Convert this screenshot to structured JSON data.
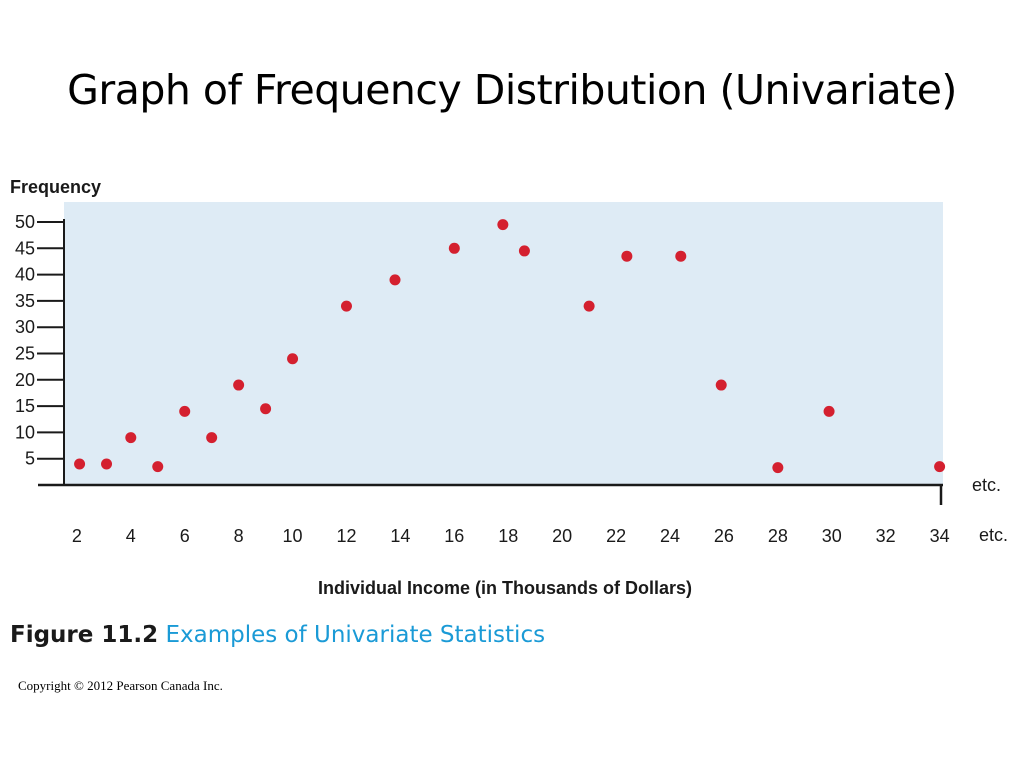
{
  "page_title": "Graph of Frequency Distribution (Univariate)",
  "chart_data": {
    "type": "scatter",
    "ylabel": "Frequency",
    "xlabel": "Individual Income (in Thousands of Dollars)",
    "x_ticks": [
      2,
      4,
      6,
      8,
      10,
      12,
      14,
      16,
      18,
      20,
      22,
      24,
      26,
      28,
      30,
      32,
      34
    ],
    "y_ticks": [
      5,
      10,
      15,
      20,
      25,
      30,
      35,
      40,
      45,
      50
    ],
    "xlim": [
      1.3,
      34.2
    ],
    "ylim": [
      0,
      53
    ],
    "x_etc_label": "etc.",
    "axis_etc_label": "etc.",
    "points": [
      {
        "x": 2.1,
        "y": 4
      },
      {
        "x": 3.1,
        "y": 4
      },
      {
        "x": 4.0,
        "y": 9
      },
      {
        "x": 5.0,
        "y": 3.5
      },
      {
        "x": 6.0,
        "y": 14
      },
      {
        "x": 7.0,
        "y": 9
      },
      {
        "x": 8.0,
        "y": 19
      },
      {
        "x": 9.0,
        "y": 14.5
      },
      {
        "x": 10.0,
        "y": 24
      },
      {
        "x": 12.0,
        "y": 34
      },
      {
        "x": 13.8,
        "y": 39
      },
      {
        "x": 16.0,
        "y": 45
      },
      {
        "x": 17.8,
        "y": 49.5
      },
      {
        "x": 18.6,
        "y": 44.5
      },
      {
        "x": 21.0,
        "y": 34
      },
      {
        "x": 22.4,
        "y": 43.5
      },
      {
        "x": 24.4,
        "y": 43.5
      },
      {
        "x": 25.9,
        "y": 19
      },
      {
        "x": 28.0,
        "y": 3.3
      },
      {
        "x": 29.9,
        "y": 14
      },
      {
        "x": 34.0,
        "y": 3.5
      }
    ],
    "colors": {
      "plot_background": "#deebf5",
      "point": "#d4202f",
      "axis": "#1a1a1a"
    }
  },
  "caption": {
    "figure_number": "Figure 11.2",
    "figure_text": "Examples of Univariate Statistics"
  },
  "copyright": "Copyright © 2012 Pearson Canada Inc."
}
